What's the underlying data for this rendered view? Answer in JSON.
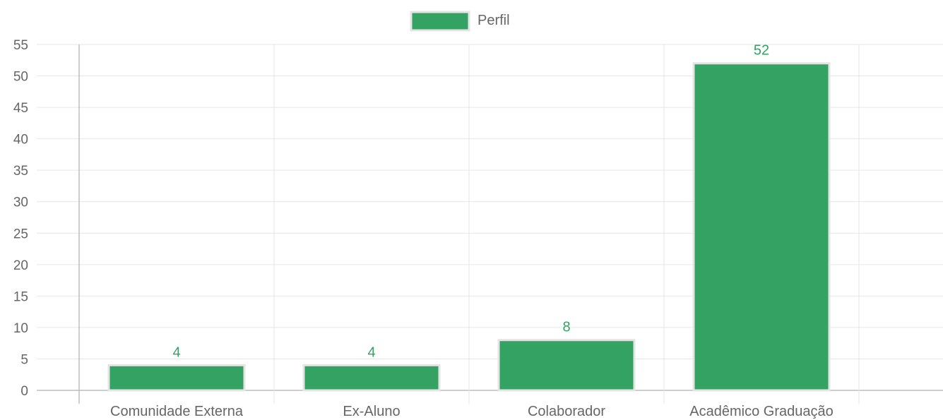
{
  "chart_data": {
    "type": "bar",
    "categories": [
      "Comunidade Externa",
      "Ex-Aluno",
      "Colaborador",
      "Acadêmico Graduação"
    ],
    "series": [
      {
        "name": "Perfil",
        "values": [
          4,
          4,
          8,
          52
        ],
        "color": "#34a263"
      }
    ],
    "data_labels": [
      "4",
      "4",
      "8",
      "52"
    ],
    "ylim": [
      0,
      55
    ],
    "y_ticks": [
      "0",
      "5",
      "10",
      "15",
      "20",
      "25",
      "30",
      "35",
      "40",
      "45",
      "50",
      "55"
    ],
    "grid": true,
    "legend_position": "top-center",
    "colors": {
      "bar": "#34a263",
      "bar_border": "#e4e4e4",
      "data_label": "#34a263",
      "grid": "#e6e6e6",
      "text": "#666666"
    }
  }
}
